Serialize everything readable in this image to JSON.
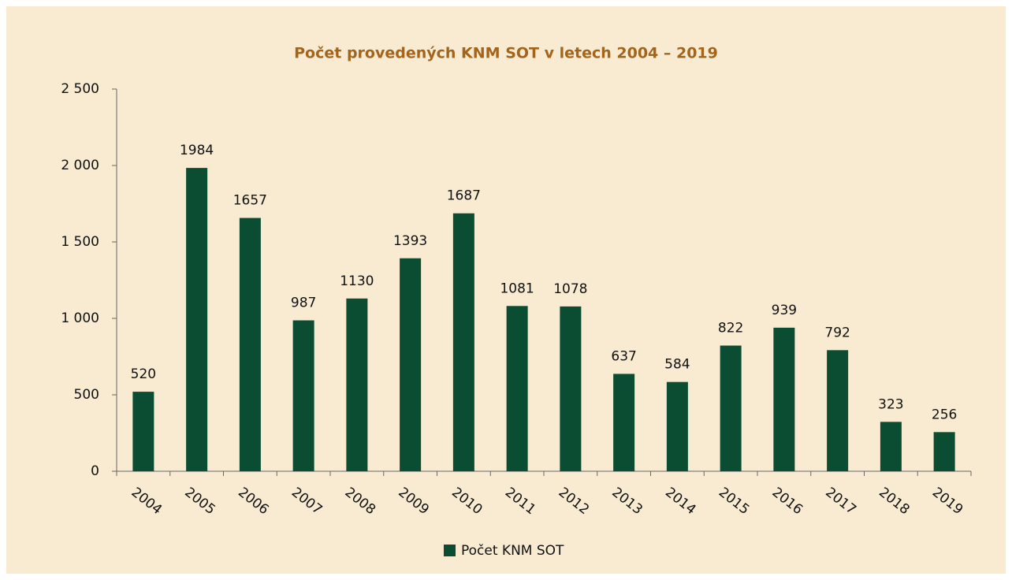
{
  "chart_data": {
    "type": "bar",
    "title": "Počet provedených KNM SOT v letech 2004 – 2019",
    "categories": [
      "2004",
      "2005",
      "2006",
      "2007",
      "2008",
      "2009",
      "2010",
      "2011",
      "2012",
      "2013",
      "2014",
      "2015",
      "2016",
      "2017",
      "2018",
      "2019"
    ],
    "series": [
      {
        "name": "Počet KNM SOT",
        "color": "#0b4d33",
        "values": [
          520,
          1984,
          1657,
          987,
          1130,
          1393,
          1687,
          1081,
          1078,
          637,
          584,
          822,
          939,
          792,
          323,
          256
        ]
      }
    ],
    "ylim": [
      0,
      2500
    ],
    "yticks": [
      0,
      500,
      {
        "value": 1000,
        "label": "1 000"
      },
      {
        "value": 1500,
        "label": "1 500"
      },
      {
        "value": 2000,
        "label": "2 000"
      },
      {
        "value": 2500,
        "label": "2 500"
      }
    ],
    "grid": false,
    "legend": "bottom"
  }
}
